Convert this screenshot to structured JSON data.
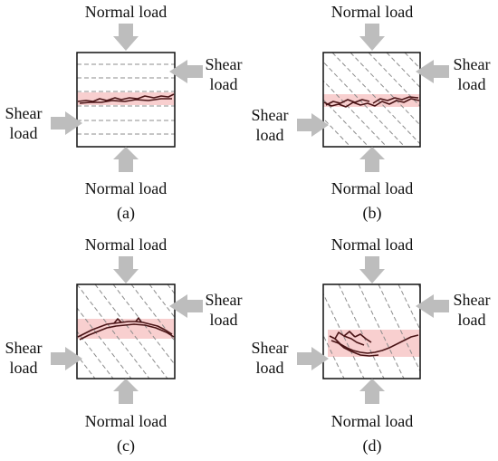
{
  "colors": {
    "arrow": "#bdbdbd",
    "band": "#f8cfcf",
    "crack": "#4a1416",
    "dashes": "#8c8c8c",
    "box": "#111111"
  },
  "panels": [
    {
      "id": "a",
      "top_label": "Normal load",
      "bottom_label": "Normal load",
      "shear_right_line1": "Shear",
      "shear_right_line2": "load",
      "shear_left_line1": "Shear",
      "shear_left_line2": "load",
      "caption": "(a)",
      "layer_pattern": "horizontal"
    },
    {
      "id": "b",
      "top_label": "Normal load",
      "bottom_label": "Normal load",
      "shear_right_line1": "Shear",
      "shear_right_line2": "load",
      "shear_left_line1": "Shear",
      "shear_left_line2": "load",
      "caption": "(b)",
      "layer_pattern": "inclined"
    },
    {
      "id": "c",
      "top_label": "Normal load",
      "bottom_label": "Normal load",
      "shear_right_line1": "Shear",
      "shear_right_line2": "load",
      "shear_left_line1": "Shear",
      "shear_left_line2": "load",
      "caption": "(c)",
      "layer_pattern": "inclined"
    },
    {
      "id": "d",
      "top_label": "Normal load",
      "bottom_label": "Normal load",
      "shear_right_line1": "Shear",
      "shear_right_line2": "load",
      "shear_left_line1": "Shear",
      "shear_left_line2": "load",
      "caption": "(d)",
      "layer_pattern": "inclined-steep"
    }
  ]
}
